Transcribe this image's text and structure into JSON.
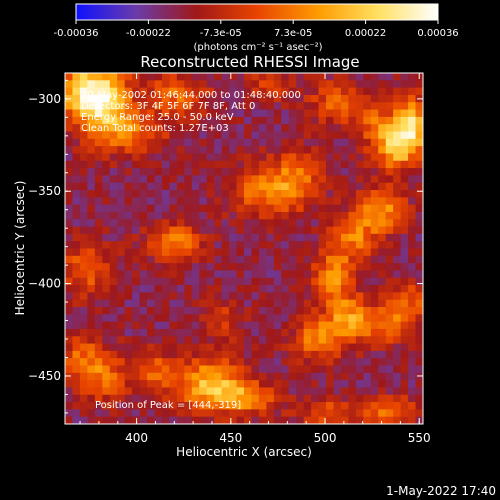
{
  "chart_data": {
    "type": "heatmap",
    "title": "Reconstructed RHESSI Image",
    "xlabel": "Heliocentric X (arcsec)",
    "ylabel": "Heliocentric Y (arcsec)",
    "xlim": [
      362,
      552
    ],
    "ylim": [
      -476,
      -286
    ],
    "x_ticks": [
      400,
      450,
      500,
      550
    ],
    "y_ticks": [
      -300,
      -350,
      -400,
      -450
    ],
    "colorbar": {
      "min": -0.00036,
      "max": 0.00036,
      "tick_labels": [
        "-0.00036",
        "-0.00022",
        "-7.3e-05",
        "7.3e-05",
        "0.00022",
        "0.00036"
      ],
      "label": "(photons cm⁻² s⁻¹ asec⁻²)",
      "colors": [
        "#1010ff",
        "#6a3ca8",
        "#a01818",
        "#e84400",
        "#ff9a00",
        "#ffe060",
        "#ffffff"
      ]
    },
    "annotations": [
      "20-May-2002 01:46:44.000 to 01:48:40.000",
      "Detectors: 3F 4F 5F 6F 7F 8F, Att 0",
      "Energy Range: 25.0 - 50.0 keV",
      "Clean     Total counts: 1.27E+03"
    ],
    "peak_label": "Position of Peak = [444,-319]",
    "grid": {
      "nx": 48,
      "ny": 48,
      "background": -0.00016,
      "blobs": [
        {
          "x": 372,
          "y": -296,
          "amp": 0.0003,
          "sx": 12,
          "sy": 10
        },
        {
          "x": 382,
          "y": -302,
          "amp": 0.00032,
          "sx": 10,
          "sy": 14
        },
        {
          "x": 398,
          "y": -318,
          "amp": 0.00018,
          "sx": 14,
          "sy": 8
        },
        {
          "x": 421,
          "y": -298,
          "amp": 0.0002,
          "sx": 12,
          "sy": 8
        },
        {
          "x": 470,
          "y": -293,
          "amp": 0.00015,
          "sx": 8,
          "sy": 6
        },
        {
          "x": 505,
          "y": -302,
          "amp": 0.00018,
          "sx": 10,
          "sy": 8
        },
        {
          "x": 538,
          "y": -325,
          "amp": 0.00036,
          "sx": 9,
          "sy": 9
        },
        {
          "x": 546,
          "y": -312,
          "amp": 0.00032,
          "sx": 6,
          "sy": 10
        },
        {
          "x": 525,
          "y": -310,
          "amp": 0.00016,
          "sx": 8,
          "sy": 8
        },
        {
          "x": 470,
          "y": -350,
          "amp": 0.00024,
          "sx": 14,
          "sy": 10
        },
        {
          "x": 487,
          "y": -340,
          "amp": 0.00016,
          "sx": 10,
          "sy": 10
        },
        {
          "x": 420,
          "y": -378,
          "amp": 0.00024,
          "sx": 10,
          "sy": 7
        },
        {
          "x": 373,
          "y": -392,
          "amp": 0.0002,
          "sx": 10,
          "sy": 10
        },
        {
          "x": 530,
          "y": -360,
          "amp": 0.00026,
          "sx": 9,
          "sy": 9
        },
        {
          "x": 515,
          "y": -375,
          "amp": 0.00022,
          "sx": 8,
          "sy": 9
        },
        {
          "x": 504,
          "y": -397,
          "amp": 0.00026,
          "sx": 8,
          "sy": 10
        },
        {
          "x": 512,
          "y": -418,
          "amp": 0.00022,
          "sx": 8,
          "sy": 8
        },
        {
          "x": 530,
          "y": -422,
          "amp": 0.0002,
          "sx": 10,
          "sy": 8
        },
        {
          "x": 544,
          "y": -410,
          "amp": 0.00018,
          "sx": 8,
          "sy": 8
        },
        {
          "x": 497,
          "y": -430,
          "amp": 0.00024,
          "sx": 10,
          "sy": 8
        },
        {
          "x": 440,
          "y": -455,
          "amp": 0.00036,
          "sx": 12,
          "sy": 10
        },
        {
          "x": 460,
          "y": -462,
          "amp": 0.00022,
          "sx": 10,
          "sy": 6
        },
        {
          "x": 412,
          "y": -448,
          "amp": 0.00018,
          "sx": 8,
          "sy": 8
        },
        {
          "x": 383,
          "y": -450,
          "amp": 0.0002,
          "sx": 10,
          "sy": 10
        },
        {
          "x": 370,
          "y": -440,
          "amp": 0.00016,
          "sx": 8,
          "sy": 10
        },
        {
          "x": 500,
          "y": -470,
          "amp": 0.00016,
          "sx": 12,
          "sy": 6
        },
        {
          "x": 535,
          "y": -470,
          "amp": 0.00022,
          "sx": 10,
          "sy": 6
        },
        {
          "x": 445,
          "y": -420,
          "amp": 0.00012,
          "sx": 8,
          "sy": 8
        }
      ]
    }
  },
  "timestamp": "1-May-2022 17:40"
}
